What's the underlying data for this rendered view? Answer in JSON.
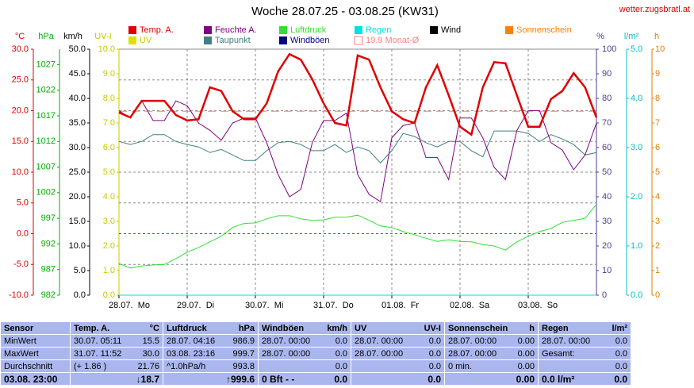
{
  "site": "wetter.zugsbratl.at",
  "chart_data": {
    "type": "line",
    "title": "Woche 28.07.25 - 03.08.25 (KW31)",
    "xlim": [
      0,
      168
    ],
    "xticks": [
      {
        "value": 0,
        "label": "28.07.  Mo"
      },
      {
        "value": 24,
        "label": "29.07.  Di"
      },
      {
        "value": 48,
        "label": "30.07.  Mi"
      },
      {
        "value": 72,
        "label": "31.07.  Do"
      },
      {
        "value": 96,
        "label": "01.08.  Fr"
      },
      {
        "value": 120,
        "label": "02.08.  Sa"
      },
      {
        "value": 144,
        "label": "03.08.  So"
      }
    ],
    "grid": true,
    "axes": [
      {
        "label": "°C",
        "color": "#e00000",
        "ylim": [
          -10,
          30
        ],
        "yticks": [
          {
            "value": -10,
            "label": "-10.0"
          },
          {
            "value": -5,
            "label": "-5.0"
          },
          {
            "value": 0,
            "label": "0.0"
          },
          {
            "value": 5,
            "label": "5.0"
          },
          {
            "value": 10,
            "label": "10.0"
          },
          {
            "value": 15,
            "label": "15.0"
          },
          {
            "value": 20,
            "label": "20.0"
          },
          {
            "value": 25,
            "label": "25.0"
          },
          {
            "value": 30,
            "label": "30.0"
          }
        ]
      },
      {
        "label": "hPa",
        "color": "#00b000",
        "ylim": [
          982,
          1030
        ],
        "yticks": [
          982,
          987,
          992,
          997,
          1002,
          1007,
          1012,
          1017,
          1022,
          1027
        ]
      },
      {
        "label": "km/h",
        "color": "#000000",
        "ylim": [
          0,
          50
        ],
        "yticks": [
          {
            "value": 0,
            "label": "0.0"
          },
          {
            "value": 5,
            "label": "5.0"
          },
          {
            "value": 10,
            "label": "10.0"
          },
          {
            "value": 15,
            "label": "15.0"
          },
          {
            "value": 20,
            "label": "20.0"
          },
          {
            "value": 25,
            "label": "25.0"
          },
          {
            "value": 30,
            "label": "30.0"
          },
          {
            "value": 35,
            "label": "35.0"
          },
          {
            "value": 40,
            "label": "40.0"
          },
          {
            "value": 45,
            "label": "45.0"
          },
          {
            "value": 50,
            "label": "50.0"
          }
        ]
      },
      {
        "label": "UV-I",
        "color": "#c8c800",
        "ylim": [
          0,
          10
        ],
        "yticks": [
          {
            "value": 0,
            "label": "0.0"
          },
          {
            "value": 1,
            "label": "1.0"
          },
          {
            "value": 2,
            "label": "2.0"
          },
          {
            "value": 3,
            "label": "3.0"
          },
          {
            "value": 4,
            "label": "4.0"
          },
          {
            "value": 5,
            "label": "5.0"
          },
          {
            "value": 6,
            "label": "6.0"
          },
          {
            "value": 7,
            "label": "7.0"
          },
          {
            "value": 8,
            "label": "8.0"
          },
          {
            "value": 9,
            "label": "9.0"
          },
          {
            "value": 10,
            "label": "10.0"
          }
        ]
      },
      {
        "label": "%",
        "color": "#503c8c",
        "ylim": [
          0,
          100
        ],
        "yticks": [
          0,
          10,
          20,
          30,
          40,
          50,
          60,
          70,
          80,
          90,
          100
        ]
      },
      {
        "label": "l/m²",
        "color": "#00c0c0",
        "ylim": [
          0,
          5
        ],
        "yticks": [
          {
            "value": 0,
            "label": "0.0"
          },
          {
            "value": 1,
            "label": "1.0"
          },
          {
            "value": 2,
            "label": "2.0"
          },
          {
            "value": 3,
            "label": "3.0"
          },
          {
            "value": 4,
            "label": "4.0"
          },
          {
            "value": 5,
            "label": "5.0"
          }
        ]
      },
      {
        "label": "h",
        "color": "#e08000",
        "ylim": [
          0,
          10
        ],
        "yticks": [
          0,
          1,
          2,
          3,
          4,
          5,
          6,
          7,
          8,
          9,
          10
        ]
      }
    ],
    "x": [
      0,
      4,
      8,
      12,
      16,
      20,
      24,
      28,
      32,
      36,
      40,
      44,
      48,
      52,
      56,
      60,
      64,
      68,
      72,
      76,
      80,
      84,
      88,
      92,
      96,
      100,
      104,
      108,
      112,
      116,
      120,
      124,
      128,
      132,
      136,
      140,
      144,
      148,
      152,
      156,
      160,
      164,
      168
    ],
    "series": [
      {
        "name": "Temp. A.",
        "color": "#e00000",
        "axis": 0,
        "values": [
          19.7,
          18.9,
          21.6,
          21.6,
          21.6,
          19.3,
          18.4,
          18.6,
          23.8,
          23.2,
          19.9,
          18.6,
          18.6,
          21.2,
          26.4,
          29.2,
          28.3,
          25.1,
          21.2,
          18.0,
          17.6,
          29.0,
          28.3,
          23.8,
          19.9,
          18.6,
          18.0,
          23.8,
          27.4,
          22.5,
          17.4,
          16.1,
          23.8,
          27.9,
          27.7,
          22.5,
          17.4,
          17.4,
          21.9,
          23.2,
          26.1,
          23.8,
          18.9
        ]
      },
      {
        "name": "Feuchte A.",
        "color": "#800080",
        "axis": 4,
        "values": [
          75,
          72,
          79,
          71,
          71,
          79,
          77,
          70,
          67,
          63,
          70,
          72,
          72,
          62,
          49,
          40,
          43,
          62,
          71,
          71,
          74,
          49,
          41,
          38,
          64,
          69,
          70,
          56,
          56,
          47,
          72,
          72,
          64,
          52,
          47,
          67,
          75,
          75,
          62,
          59,
          51,
          57,
          70
        ]
      },
      {
        "name": "Luftdruck",
        "color": "#30e030",
        "axis": 1,
        "values": [
          988.2,
          987.3,
          987.7,
          987.9,
          988.0,
          989.1,
          990.4,
          991.3,
          992.4,
          993.5,
          995.2,
          996.0,
          996.1,
          996.9,
          997.5,
          997.5,
          996.9,
          996.6,
          996.7,
          997.2,
          997.2,
          997.6,
          996.6,
          995.5,
          995.2,
          994.4,
          993.8,
          993.1,
          992.5,
          992.8,
          992.5,
          992.4,
          991.9,
          991.6,
          990.8,
          992.4,
          993.5,
          994.4,
          995.0,
          996.2,
          996.6,
          997.0,
          999.7
        ]
      },
      {
        "name": "Regen",
        "color": "#00e0e0",
        "axis": 5,
        "values": [
          0,
          0,
          0,
          0,
          0,
          0,
          0,
          0,
          0,
          0,
          0,
          0,
          0,
          0,
          0,
          0,
          0,
          0,
          0,
          0,
          0,
          0,
          0,
          0,
          0,
          0,
          0,
          0,
          0,
          0,
          0,
          0,
          0,
          0,
          0,
          0,
          0,
          0,
          0,
          0,
          0,
          0,
          0
        ]
      },
      {
        "name": "Wind",
        "color": "#000000",
        "axis": 2,
        "values": [
          0,
          0,
          0,
          0,
          0,
          0,
          0,
          0,
          0,
          0,
          0,
          0,
          0,
          0,
          0,
          0,
          0,
          0,
          0,
          0,
          0,
          0,
          0,
          0,
          0,
          0,
          0,
          0,
          0,
          0,
          0,
          0,
          0,
          0,
          0,
          0,
          0,
          0,
          0,
          0,
          0,
          0,
          0
        ]
      },
      {
        "name": "Sonnenschein",
        "color": "#ff8000",
        "axis": 6,
        "values": [
          0,
          0,
          0,
          0,
          0,
          0,
          0,
          0,
          0,
          0,
          0,
          0,
          0,
          0,
          0,
          0,
          0,
          0,
          0,
          0,
          0,
          0,
          0,
          0,
          0,
          0,
          0,
          0,
          0,
          0,
          0,
          0,
          0,
          0,
          0,
          0,
          0,
          0,
          0,
          0,
          0,
          0,
          0
        ]
      },
      {
        "name": "UV",
        "color": "#e0e000",
        "axis": 3,
        "values": [
          0,
          0,
          0,
          0,
          0,
          0,
          0,
          0,
          0,
          0,
          0,
          0,
          0,
          0,
          0,
          0,
          0,
          0,
          0,
          0,
          0,
          0,
          0,
          0,
          0,
          0,
          0,
          0,
          0,
          0,
          0,
          0,
          0,
          0,
          0,
          0,
          0,
          0,
          0,
          0,
          0,
          0,
          0
        ]
      },
      {
        "name": "Taupunkt",
        "color": "#408080",
        "axis": 0,
        "values": [
          15.0,
          14.5,
          15.0,
          16.1,
          16.1,
          15.0,
          14.5,
          14.1,
          13.2,
          13.7,
          12.8,
          11.9,
          11.9,
          13.5,
          14.8,
          15.0,
          14.5,
          13.5,
          13.5,
          14.5,
          13.2,
          14.1,
          13.5,
          11.5,
          13.5,
          16.3,
          15.8,
          14.8,
          14.1,
          15.0,
          15.0,
          13.5,
          12.5,
          16.7,
          16.7,
          16.7,
          16.3,
          15.0,
          16.1,
          15.4,
          14.5,
          12.8,
          13.2
        ]
      },
      {
        "name": "Windböen",
        "color": "#000080",
        "axis": 2,
        "values": [
          0,
          0,
          0,
          0,
          0,
          0,
          0,
          0,
          0,
          0,
          0,
          0,
          0,
          0,
          0,
          0,
          0,
          0,
          0,
          0,
          0,
          0,
          0,
          0,
          0,
          0,
          0,
          0,
          0,
          0,
          0,
          0,
          0,
          0,
          0,
          0,
          0,
          0,
          0,
          0,
          0,
          0,
          0
        ]
      }
    ],
    "reference_line": {
      "name": "19.9 Monat-Ø",
      "value": 19.9,
      "axis": 0,
      "color": "#ff8080"
    }
  },
  "table": {
    "header": [
      [
        "Sensor"
      ],
      [
        "Temp. A.",
        "°C"
      ],
      [
        "Luftdruck",
        "hPa"
      ],
      [
        "Windböen",
        "km/h"
      ],
      [
        "UV",
        "UV-I"
      ],
      [
        "Sonnenschein",
        "h"
      ],
      [
        "Regen",
        "l/m²"
      ]
    ],
    "rows": [
      [
        [
          "MinWert"
        ],
        [
          "30.07.  05:11",
          "15.5"
        ],
        [
          "28.07.  04:16",
          "986.9"
        ],
        [
          "28.07.  00:00",
          "0.0"
        ],
        [
          "28.07.  00:00",
          "0.0"
        ],
        [
          "28.07.  00:00",
          "0.00"
        ],
        [
          "28.07.  00:00",
          "0.0"
        ]
      ],
      [
        [
          "MaxWert"
        ],
        [
          "31.07.  11:52",
          "30.0"
        ],
        [
          "03.08.  23:16",
          "999.7"
        ],
        [
          "28.07.  00:00",
          "0.0"
        ],
        [
          "28.07.  00:00",
          "0.0"
        ],
        [
          "28.07.  00:00",
          "0.00"
        ],
        [
          "Gesamt:",
          "0.0"
        ]
      ],
      [
        [
          "Durchschnitt"
        ],
        [
          "(+ 1.86 )",
          "21.76"
        ],
        [
          "^1.0hPa/h",
          "993.8"
        ],
        [
          "0.0"
        ],
        [
          "0.0"
        ],
        [
          "0 min.",
          "0.00"
        ],
        [
          "0.0"
        ]
      ],
      [
        [
          "03.08. 23:00"
        ],
        [
          "↓18.7"
        ],
        [
          "↑999.6"
        ],
        [
          "0 Bft - -",
          "0.0"
        ],
        [
          "0.0"
        ],
        [
          "0.00"
        ],
        [
          "0.0 l/m²",
          "0.0"
        ]
      ]
    ]
  }
}
